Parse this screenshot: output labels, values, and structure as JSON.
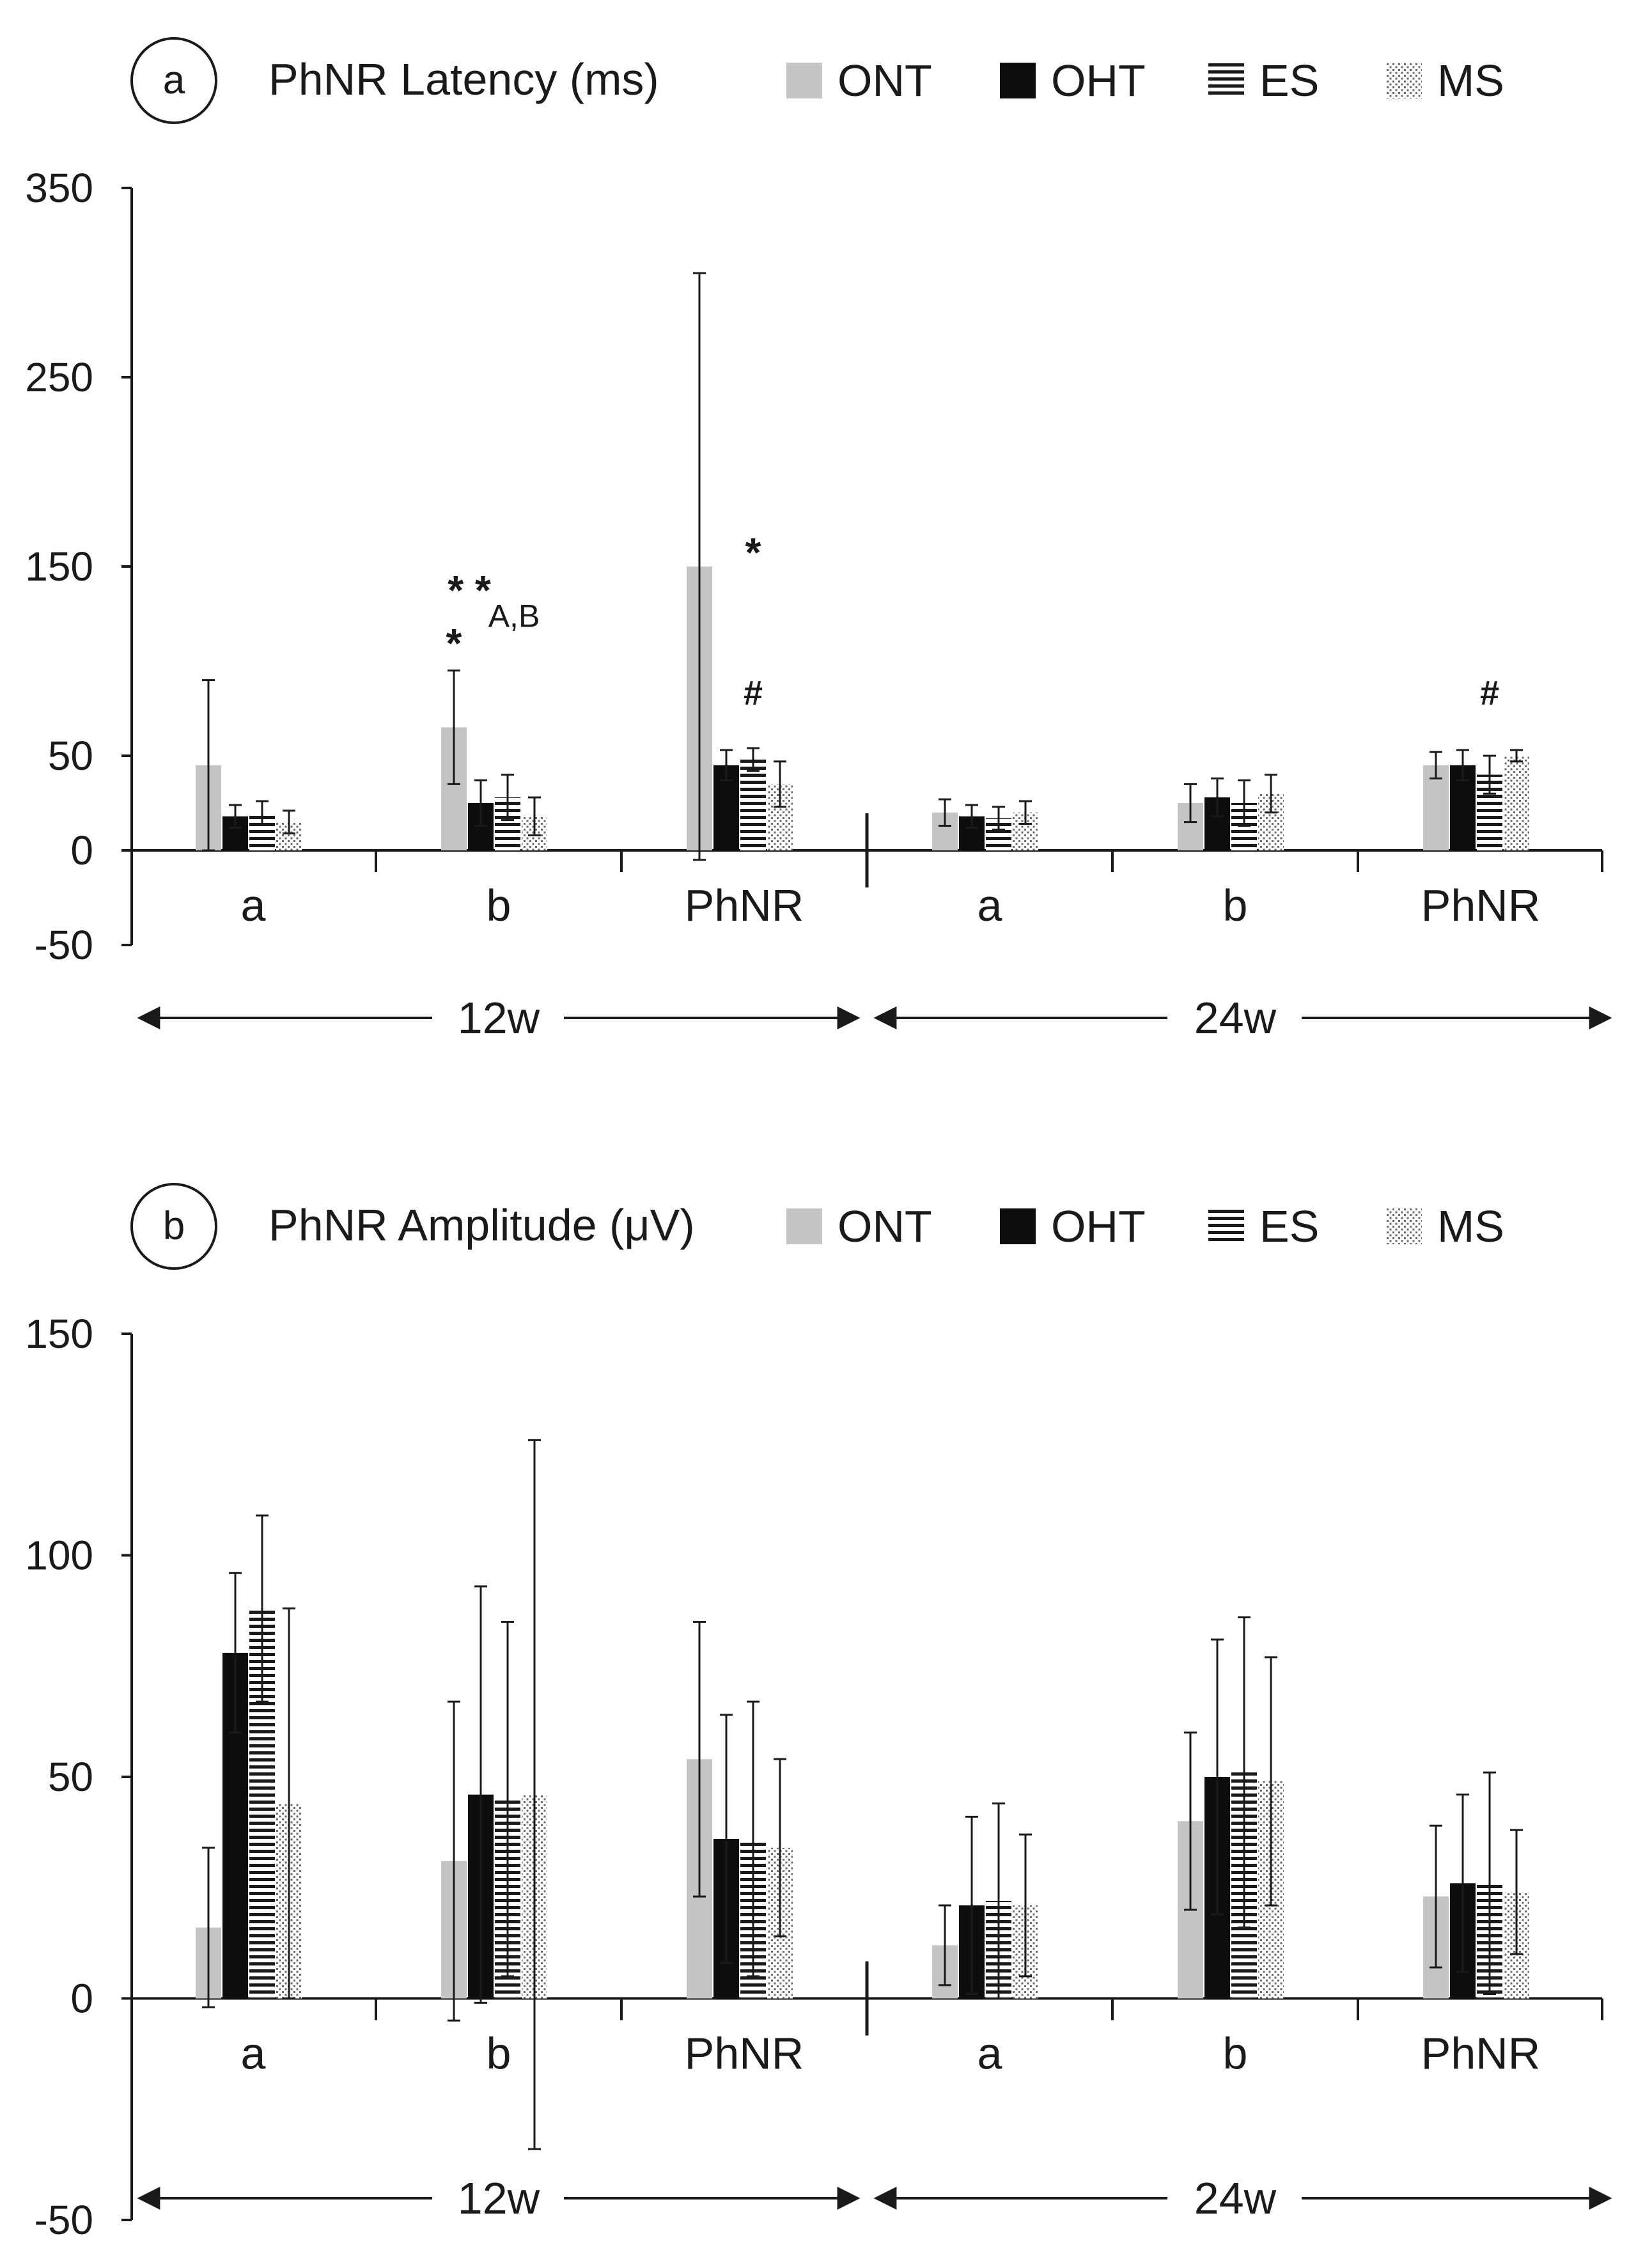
{
  "colors": {
    "ONT": "#c4c4c4",
    "OHT": "#0d0d0d",
    "ES": "#1a1a1a",
    "MS": "#555555",
    "axis": "#1a1a1a"
  },
  "legend": [
    {
      "key": "ONT",
      "label": "ONT",
      "pattern": "solid-gray"
    },
    {
      "key": "OHT",
      "label": "OHT",
      "pattern": "solid-black"
    },
    {
      "key": "ES",
      "label": "ES",
      "pattern": "horizontal-lines"
    },
    {
      "key": "MS",
      "label": "MS",
      "pattern": "dots"
    }
  ],
  "chart_data": [
    {
      "type": "bar",
      "panel": "a",
      "title": "PhNR Latency (ms)",
      "ylim": [
        -50,
        350
      ],
      "yticks": [
        -50,
        0,
        50,
        150,
        250,
        350
      ],
      "categories": [
        "a",
        "b",
        "PhNR",
        "a",
        "b",
        "PhNR"
      ],
      "periods": [
        {
          "label": "12w",
          "categories": [
            0,
            1,
            2
          ]
        },
        {
          "label": "24w",
          "categories": [
            3,
            4,
            5
          ]
        }
      ],
      "series": [
        {
          "name": "ONT",
          "values": [
            45,
            65,
            150,
            20,
            25,
            45
          ],
          "error": [
            45,
            30,
            155,
            7,
            10,
            7
          ]
        },
        {
          "name": "OHT",
          "values": [
            18,
            25,
            45,
            18,
            28,
            45
          ],
          "error": [
            6,
            12,
            8,
            6,
            10,
            8
          ]
        },
        {
          "name": "ES",
          "values": [
            20,
            28,
            48,
            17,
            25,
            40
          ],
          "error": [
            6,
            12,
            6,
            6,
            12,
            10
          ]
        },
        {
          "name": "MS",
          "values": [
            15,
            18,
            35,
            20,
            30,
            50
          ],
          "error": [
            6,
            10,
            12,
            6,
            10,
            3
          ]
        }
      ],
      "annotations": [
        {
          "text": "* *",
          "category": 1,
          "series": 0,
          "value": 130,
          "size": 64,
          "bold": true
        },
        {
          "text": "A,B",
          "category": 1,
          "series": 2,
          "value": 118,
          "size": 50,
          "bold": false
        },
        {
          "text": "*",
          "category": 1,
          "series": 0,
          "value": 102,
          "size": 64,
          "bold": true
        },
        {
          "text": "*",
          "category": 2,
          "series": 2,
          "value": 150,
          "size": 64,
          "bold": true
        },
        {
          "text": "#",
          "category": 2,
          "series": 2,
          "value": 77,
          "size": 54,
          "bold": true
        },
        {
          "text": "#",
          "category": 5,
          "series": 2,
          "value": 77,
          "size": 54,
          "bold": true
        }
      ]
    },
    {
      "type": "bar",
      "panel": "b",
      "title": "PhNR Amplitude (μV)",
      "ylim": [
        -50,
        150
      ],
      "yticks": [
        -50,
        0,
        50,
        100,
        150
      ],
      "categories": [
        "a",
        "b",
        "PhNR",
        "a",
        "b",
        "PhNR"
      ],
      "periods": [
        {
          "label": "12w",
          "categories": [
            0,
            1,
            2
          ]
        },
        {
          "label": "24w",
          "categories": [
            3,
            4,
            5
          ]
        }
      ],
      "series": [
        {
          "name": "ONT",
          "values": [
            16,
            31,
            54,
            12,
            40,
            23
          ],
          "error": [
            18,
            36,
            31,
            9,
            20,
            16
          ]
        },
        {
          "name": "OHT",
          "values": [
            78,
            46,
            36,
            21,
            50,
            26
          ],
          "error": [
            18,
            47,
            28,
            20,
            31,
            20
          ]
        },
        {
          "name": "ES",
          "values": [
            88,
            45,
            36,
            22,
            51,
            26
          ],
          "error": [
            21,
            40,
            31,
            22,
            35,
            25
          ]
        },
        {
          "name": "MS",
          "values": [
            44,
            46,
            34,
            21,
            49,
            24
          ],
          "error": [
            44,
            80,
            20,
            16,
            28,
            14
          ]
        }
      ],
      "annotations": []
    }
  ]
}
